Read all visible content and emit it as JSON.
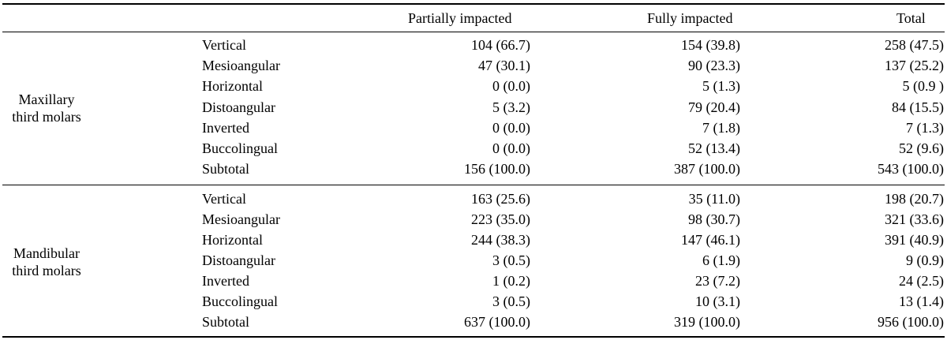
{
  "headers": {
    "partial": "Partially impacted",
    "fully": "Fully impacted",
    "total": "Total"
  },
  "groups": [
    {
      "label_lines": [
        "Maxillary",
        "third molars"
      ],
      "rows": [
        {
          "type": "Vertical",
          "partial": "104 (66.7)",
          "fully": "154 (39.8)",
          "total": "258 (47.5)"
        },
        {
          "type": "Mesioangular",
          "partial": "47 (30.1)",
          "fully": "90 (23.3)",
          "total": "137 (25.2)"
        },
        {
          "type": "Horizontal",
          "partial": "0 (0.0)",
          "fully": "5 (1.3)",
          "total": "5 (0.9 )"
        },
        {
          "type": "Distoangular",
          "partial": "5 (3.2)",
          "fully": "79 (20.4)",
          "total": "84 (15.5)"
        },
        {
          "type": "Inverted",
          "partial": "0 (0.0)",
          "fully": "7 (1.8)",
          "total": "7 (1.3)"
        },
        {
          "type": "Buccolingual",
          "partial": "0 (0.0)",
          "fully": "52 (13.4)",
          "total": "52 (9.6)"
        },
        {
          "type": "Subtotal",
          "partial": "156 (100.0)",
          "fully": "387 (100.0)",
          "total": "543 (100.0)"
        }
      ]
    },
    {
      "label_lines": [
        "Mandibular",
        "third molars"
      ],
      "rows": [
        {
          "type": "Vertical",
          "partial": "163 (25.6)",
          "fully": "35 (11.0)",
          "total": "198 (20.7)"
        },
        {
          "type": "Mesioangular",
          "partial": "223 (35.0)",
          "fully": "98 (30.7)",
          "total": "321 (33.6)"
        },
        {
          "type": "Horizontal",
          "partial": "244 (38.3)",
          "fully": "147 (46.1)",
          "total": "391 (40.9)"
        },
        {
          "type": "Distoangular",
          "partial": "3 (0.5)",
          "fully": "6 (1.9)",
          "total": "9 (0.9)"
        },
        {
          "type": "Inverted",
          "partial": "1 (0.2)",
          "fully": "23 (7.2)",
          "total": "24 (2.5)"
        },
        {
          "type": "Buccolingual",
          "partial": "3 (0.5)",
          "fully": "10 (3.1)",
          "total": "13 (1.4)"
        },
        {
          "type": "Subtotal",
          "partial": "637 (100.0)",
          "fully": "319 (100.0)",
          "total": "956 (100.0)"
        }
      ]
    }
  ]
}
